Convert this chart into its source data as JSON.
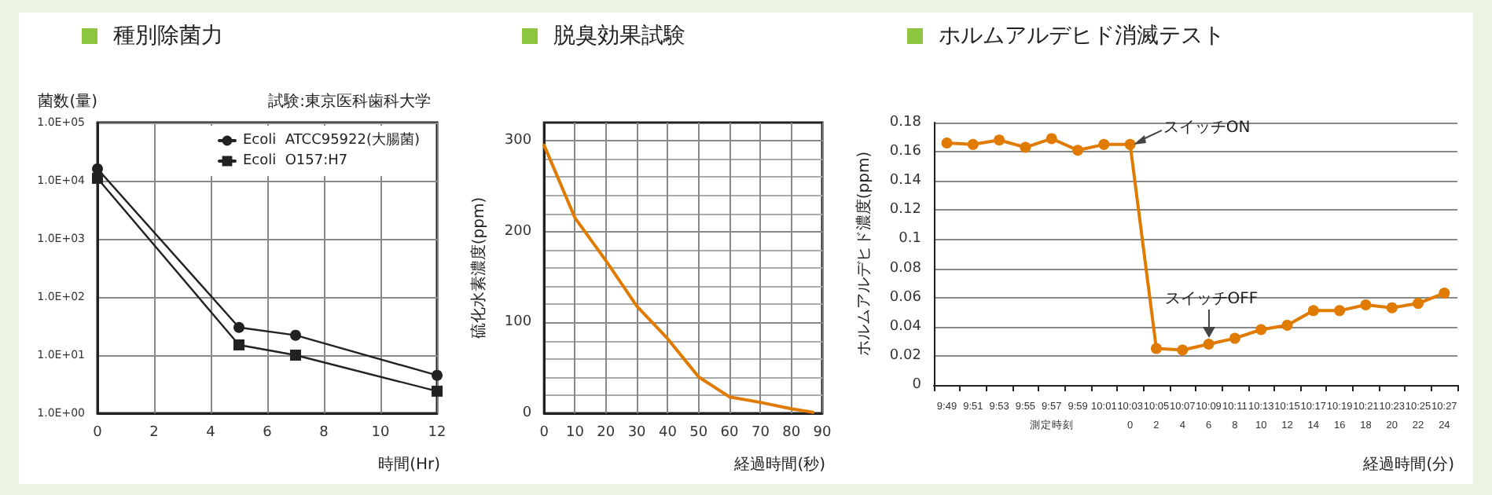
{
  "chart_data": [
    {
      "type": "line",
      "title": "種別除菌力",
      "ylabel": "菌数(量)",
      "xlabel": "時間(Hr)",
      "annotations": [
        "試験:東京医科歯科大学"
      ],
      "log": "y",
      "xlim": [
        0,
        12
      ],
      "xticks": [
        0,
        2,
        4,
        6,
        8,
        10,
        12
      ],
      "ylim": [
        1,
        100000
      ],
      "yticks": [
        {
          "value": 1,
          "label": "1.0E+00"
        },
        {
          "value": 10,
          "label": "1.0E+01"
        },
        {
          "value": 100,
          "label": "1.0E+02"
        },
        {
          "value": 1000,
          "label": "1.0E+03"
        },
        {
          "value": 10000,
          "label": "1.0E+04"
        },
        {
          "value": 100000,
          "label": "1.0E+05"
        }
      ],
      "grid": true,
      "legend": "top right",
      "x": [
        0,
        5,
        7,
        12
      ],
      "series": [
        {
          "name": "Ecoli  ATCC95922(大腸菌)",
          "color": "#222222",
          "marker": "circle",
          "values": [
            16000,
            30,
            22,
            4.5
          ]
        },
        {
          "name": "Ecoli  O157:H7",
          "color": "#222222",
          "marker": "square",
          "values": [
            11000,
            15,
            10,
            2.4
          ]
        }
      ]
    },
    {
      "type": "line",
      "title": "脱臭効果試験",
      "ylabel": "硫化水素濃度(ppm)",
      "xlabel": "経過時間(秒)",
      "xlim": [
        0,
        90
      ],
      "xticks": [
        0,
        10,
        20,
        30,
        40,
        50,
        60,
        70,
        80,
        90
      ],
      "ylim": [
        0,
        320
      ],
      "yticks": [
        0,
        100,
        200,
        300
      ],
      "grid": true,
      "x": [
        0,
        10,
        20,
        30,
        40,
        50,
        60,
        70,
        80,
        87
      ],
      "series": [
        {
          "color": "#e07b00",
          "values": [
            295,
            215,
            168,
            118,
            82,
            40,
            18,
            12,
            5,
            1
          ]
        }
      ]
    },
    {
      "type": "line",
      "title": "ホルムアルデヒド消滅テスト",
      "ylabel": "ホルムアルデヒド濃度(ppm)",
      "xlabel": "経過時間(分)",
      "marker": "circle",
      "grid": "y",
      "ylim": [
        0,
        0.18
      ],
      "yticks": [
        0,
        0.02,
        0.04,
        0.06,
        0.08,
        0.1,
        0.12,
        0.14,
        0.16,
        0.18
      ],
      "categories": [
        "9:49",
        "9:51",
        "9:53",
        "9:55",
        "9:57\n測定時刻",
        "9:59",
        "10:01",
        "10:03\n0",
        "10:05\n2",
        "10:07\n4",
        "10:09\n6",
        "10:11\n8",
        "10:13\n10",
        "10:15\n12",
        "10:17\n14",
        "10:19\n16",
        "10:21\n18",
        "10:23\n20",
        "10:25\n22",
        "10:27\n24"
      ],
      "annotations": [
        {
          "text": "スイッチON",
          "x": "10:03\n0",
          "y": 0.165
        },
        {
          "text": "スイッチOFF",
          "x": "10:09\n6",
          "y": 0.028
        }
      ],
      "series": [
        {
          "color": "#e07b00",
          "values": [
            0.166,
            0.165,
            0.168,
            0.163,
            0.169,
            0.161,
            0.165,
            0.165,
            0.025,
            0.024,
            0.028,
            0.032,
            0.038,
            0.041,
            0.051,
            0.051,
            0.055,
            0.053,
            0.056,
            0.063
          ]
        }
      ]
    }
  ]
}
